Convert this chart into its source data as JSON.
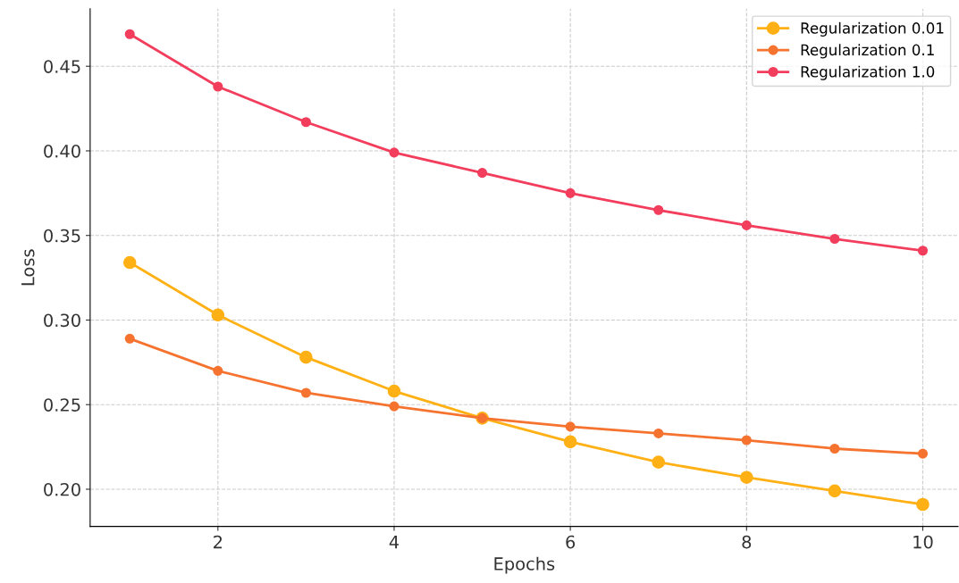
{
  "chart_data": {
    "type": "line",
    "xlabel": "Epochs",
    "ylabel": "Loss",
    "x": [
      1,
      2,
      3,
      4,
      5,
      6,
      7,
      8,
      9,
      10
    ],
    "series": [
      {
        "name": "Regularization 0.01",
        "color": "#ffb014",
        "values": [
          0.334,
          0.303,
          0.278,
          0.258,
          0.242,
          0.228,
          0.216,
          0.207,
          0.199,
          0.191
        ]
      },
      {
        "name": "Regularization 0.1",
        "color": "#f5732f",
        "values": [
          0.289,
          0.27,
          0.257,
          0.249,
          0.242,
          0.237,
          0.233,
          0.229,
          0.224,
          0.221
        ]
      },
      {
        "name": "Regularization 1.0",
        "color": "#f23d5c",
        "values": [
          0.469,
          0.438,
          0.417,
          0.399,
          0.387,
          0.375,
          0.365,
          0.356,
          0.348,
          0.341
        ]
      }
    ],
    "xlim": [
      0.55,
      10.4
    ],
    "ylim": [
      0.178,
      0.484
    ],
    "xticks": [
      2,
      4,
      6,
      8,
      10
    ],
    "yticks": [
      {
        "value": 0.2,
        "label": "0.20"
      },
      {
        "value": 0.25,
        "label": "0.25"
      },
      {
        "value": 0.3,
        "label": "0.30"
      },
      {
        "value": 0.35,
        "label": "0.35"
      },
      {
        "value": 0.4,
        "label": "0.40"
      },
      {
        "value": 0.45,
        "label": "0.45"
      }
    ],
    "grid": true,
    "legend": "top right",
    "marker": "circle",
    "line_style": "solid"
  }
}
